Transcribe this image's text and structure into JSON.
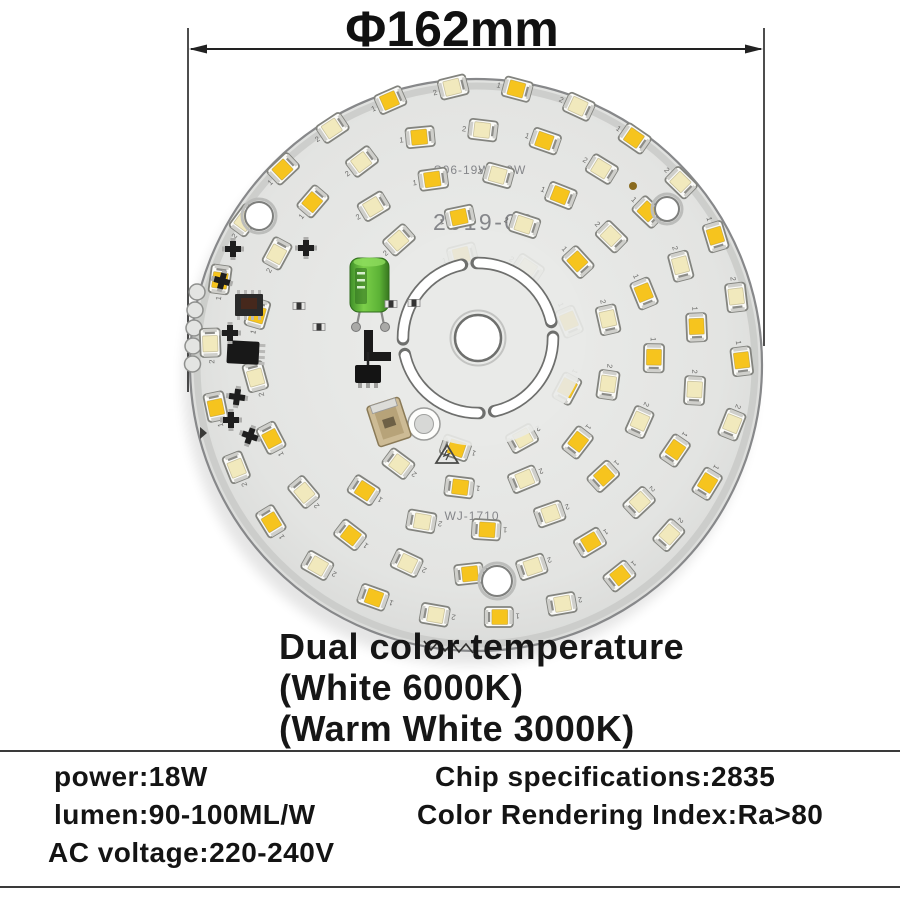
{
  "dimension": {
    "label": "Φ162mm"
  },
  "board": {
    "silkscreen": {
      "model": "S06-19W+19W",
      "date": "2019-08",
      "code": "WJ-1710"
    },
    "led": {
      "channel_labels": [
        "1",
        "2"
      ],
      "warm_color": "#f6c41e",
      "cool_color": "#f1e9bd",
      "package_color": "#fbfbf8",
      "rings": [
        {
          "radius": 266,
          "count": 26,
          "start_deg": 2,
          "jitter": 9
        },
        {
          "radius": 222,
          "count": 22,
          "start_deg": 10,
          "jitter": 9
        },
        {
          "radius": 178,
          "count": 17,
          "start_deg": 2,
          "jitter": 8,
          "skip_from_deg": 138,
          "skip_to_deg": 218
        },
        {
          "radius": 136,
          "count": 13,
          "start_deg": 14,
          "jitter": 8,
          "skip_from_deg": 128,
          "skip_to_deg": 226
        },
        {
          "radius": 98,
          "count": 9,
          "start_deg": 22,
          "jitter": 7,
          "skip_from_deg": 112,
          "skip_to_deg": 242
        }
      ]
    },
    "colors": {
      "pcb_center": "#ebecea",
      "pcb_edge_fill": "#d9dad8",
      "pcb_outline": "#87888a",
      "rim_band": "#c9cac8",
      "capacitor_green": "#6cc43e",
      "connector_tan": "#cdbb95"
    }
  },
  "description": {
    "line1": "Dual color temperature",
    "line2": "(White 6000K)",
    "line3": "(Warm White 3000K)"
  },
  "specs": {
    "rows_left": [
      "power:18W",
      "lumen:90-100ML/W",
      "AC voltage:220-240V"
    ],
    "rows_right": [
      "Chip specifications:2835",
      "Color Rendering Index:Ra>80"
    ]
  }
}
